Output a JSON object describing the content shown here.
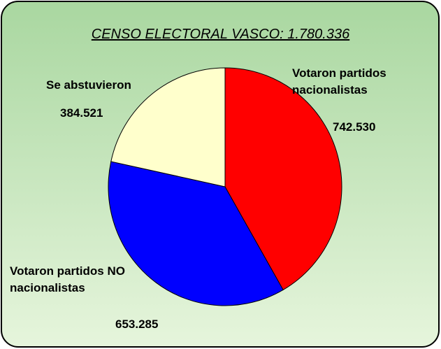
{
  "chart_data": {
    "type": "pie",
    "title": "CENSO ELECTORAL VASCO: 1.780.336",
    "categories": [
      "Votaron partidos nacionalistas",
      "Votaron partidos NO nacionalistas",
      "Se abstuvieron"
    ],
    "values": [
      742530,
      653285,
      384521
    ],
    "value_labels": [
      "742.530",
      "653.285",
      "384.521"
    ],
    "colors": [
      "#ff0000",
      "#0000ff",
      "#ffffcc"
    ]
  }
}
